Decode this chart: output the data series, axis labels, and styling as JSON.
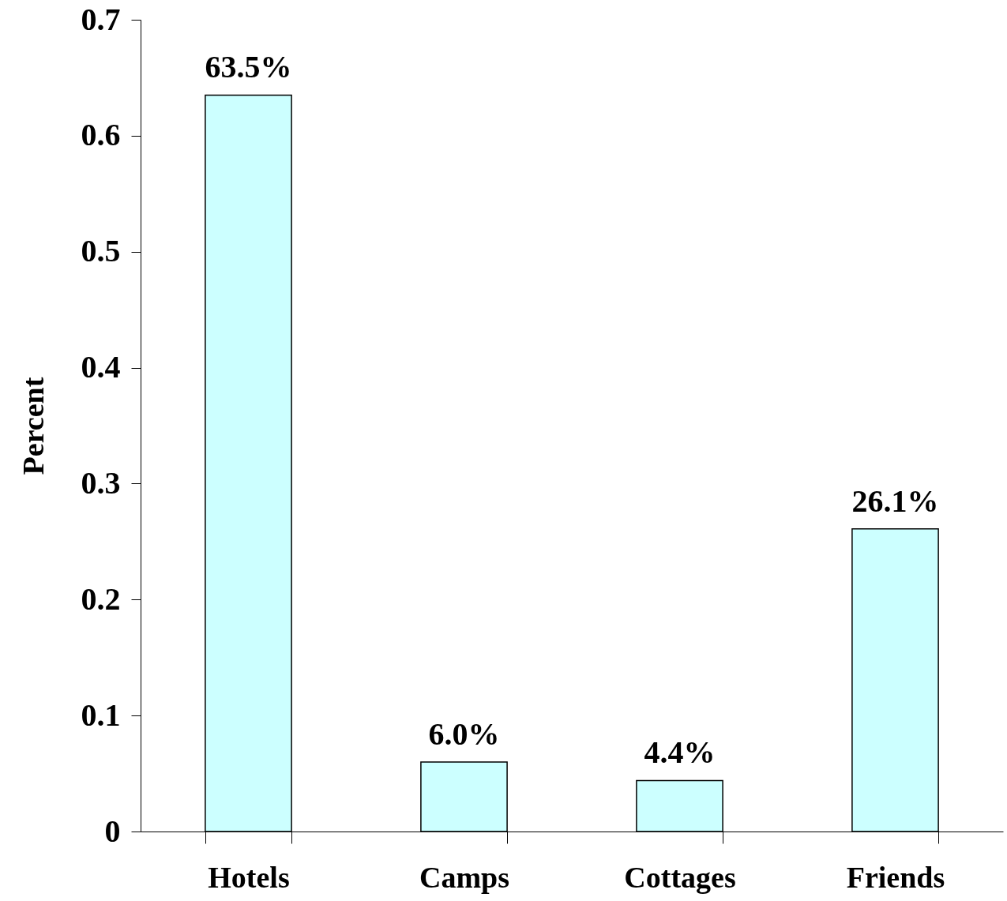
{
  "chart_data": {
    "type": "bar",
    "ylabel": "Percent",
    "categories": [
      "Hotels",
      "Camps",
      "Cottages",
      "Friends"
    ],
    "values": [
      0.635,
      0.06,
      0.044,
      0.261
    ],
    "value_labels": [
      "63.5%",
      "6.0%",
      "4.4%",
      "26.1%"
    ],
    "color": "#ccffff",
    "ylim": [
      0,
      0.7
    ],
    "yticks": [
      0,
      0.1,
      0.2,
      0.3,
      0.4,
      0.5,
      0.6,
      0.7
    ],
    "grid": false
  }
}
